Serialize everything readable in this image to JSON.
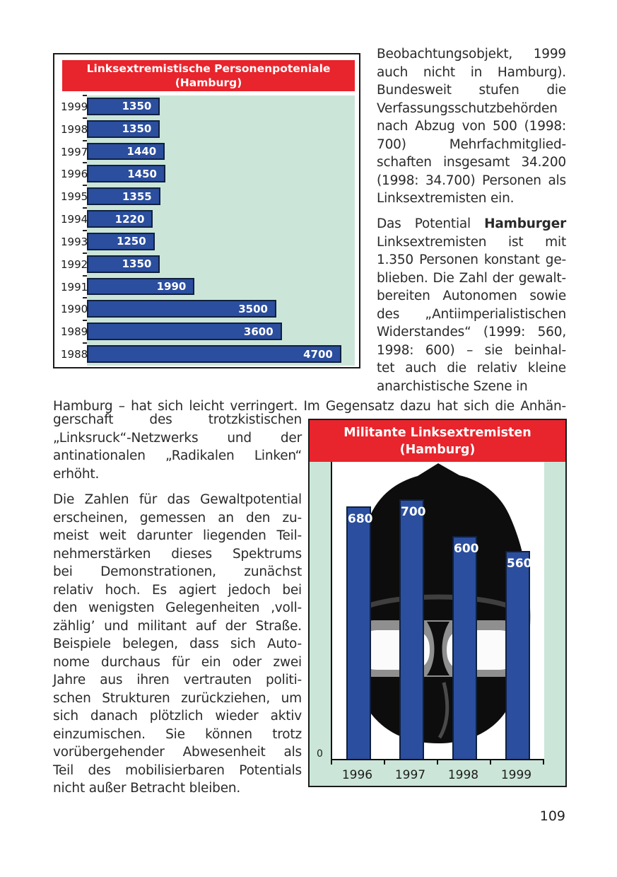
{
  "page": {
    "number": "109"
  },
  "colors": {
    "title_red": "#e8242c",
    "bar_blue": "#2b4e9e",
    "bar_border": "#10203f",
    "plot_mint": "#cbe6d9",
    "border_dark": "#1b1b1b",
    "text": "#2a2a2a",
    "mask_black": "#0d0d0d",
    "mask_gray": "#8f8f8f",
    "mask_white": "#fbfbfb"
  },
  "chart_data": [
    {
      "type": "bar",
      "orientation": "horizontal",
      "title_line1": "Linksextremistische Personenpoteniale",
      "title_line2": "(Hamburg)",
      "categories": [
        "1999",
        "1998",
        "1997",
        "1996",
        "1995",
        "1994",
        "1993",
        "1992",
        "1991",
        "1990",
        "1989",
        "1988"
      ],
      "values": [
        1350,
        1350,
        1440,
        1450,
        1355,
        1220,
        1250,
        1350,
        1990,
        3500,
        3600,
        4700
      ],
      "xlim": [
        0,
        4950
      ],
      "value_labels": "inside-right, white bold",
      "grid": false,
      "legend": "none"
    },
    {
      "type": "bar",
      "orientation": "vertical",
      "title_line1": "Militante Linksextremisten",
      "title_line2": "(Hamburg)",
      "categories": [
        "1996",
        "1997",
        "1998",
        "1999"
      ],
      "values": [
        680,
        700,
        600,
        560
      ],
      "ylim": [
        0,
        800
      ],
      "y_zero_label": "0",
      "value_labels": "inside-top, white bold",
      "background_icon": "balaclava-mask",
      "grid": false,
      "legend": "none"
    }
  ],
  "text": {
    "right_column": {
      "paragraphs": [
        {
          "lines": [
            "Beobachtungsobjekt, 1999",
            "auch nicht in Hamburg).",
            "Bundesweit stufen die",
            "Verfassungsschutzbehörden",
            "nach Abzug von 500 (1998:",
            "700) Mehrfachmitglied-",
            "schaften insgesamt 34.200",
            "(1998: 34.700) Personen als",
            "Linksextremisten ein."
          ]
        },
        {
          "lines": [
            "Das Potential **Hamburger**",
            "Linksextremisten ist mit",
            "1.350 Personen konstant ge-",
            "blieben. Die Zahl der gewalt-",
            "bereiten Autonomen sowie",
            "des „Antiimperialistischen",
            "Widerstandes“ (1999: 560,",
            "1998: 600) – sie beinhal-",
            "tet auch die relativ kleine",
            "anarchistische Szene in"
          ]
        }
      ]
    },
    "bridge_line": "Hamburg – hat sich leicht verringert. Im Gegensatz dazu hat sich die Anhän-",
    "left_column": {
      "paragraphs": [
        {
          "lines": [
            "gerschaft des trotzkistischen",
            "„Linksruck“-Netzwerks und der",
            "antinationalen „Radikalen Linken“",
            "erhöht."
          ]
        },
        {
          "lines": [
            "Die Zahlen für das Gewaltpotential",
            "erscheinen, gemessen an den zu-",
            "meist weit darunter liegenden Teil-",
            "nehmerstärken dieses Spektrums",
            "bei Demonstrationen, zunächst",
            "relativ hoch. Es agiert jedoch bei",
            "den wenigsten Gelegenheiten ‚voll-",
            "zählig’ und militant auf der Straße.",
            "Beispiele belegen, dass sich Auto-",
            "nome durchaus für ein oder zwei",
            "Jahre aus ihren vertrauten politi-",
            "schen Strukturen zurückziehen, um",
            "sich danach plötzlich wieder aktiv",
            "einzumischen. Sie können trotz",
            "vorübergehender Abwesenheit als",
            "Teil des mobilisierbaren Potentials",
            "nicht außer Betracht bleiben."
          ]
        }
      ]
    }
  }
}
